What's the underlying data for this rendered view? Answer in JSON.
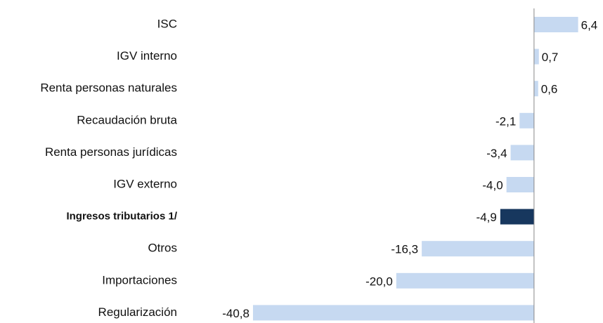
{
  "chart_data": {
    "type": "barh",
    "categories": [
      "ISC",
      "IGV interno",
      "Renta personas naturales",
      "Recaudación bruta",
      "Renta personas jurídicas",
      "IGV externo",
      "Ingresos tributarios 1/",
      "Otros",
      "Importaciones",
      "Regularización"
    ],
    "values": [
      6.4,
      0.7,
      0.6,
      -2.1,
      -3.4,
      -4.0,
      -4.9,
      -16.3,
      -20.0,
      -40.8
    ],
    "value_labels": [
      "6,4",
      "0,7",
      "0,6",
      "-2,1",
      "-3,4",
      "-4,0",
      "-4,9",
      "-16,3",
      "-20,0",
      "-40,8"
    ],
    "color": "#c6d9f1",
    "highlight": 6,
    "highlight_color": "#17375e",
    "xlim": [
      -41,
      9.5
    ]
  }
}
